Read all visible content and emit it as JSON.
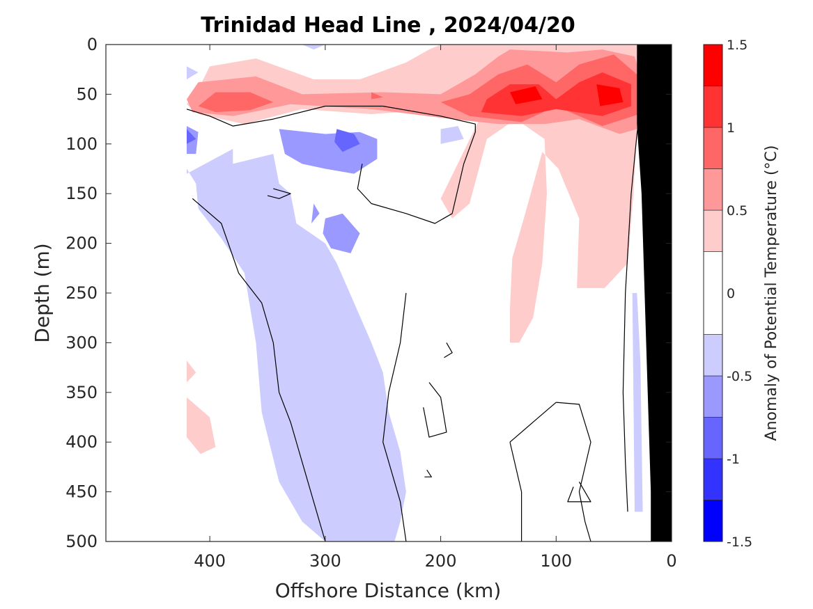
{
  "chart_data": {
    "type": "heatmap",
    "title": "Trinidad Head Line , 2024/04/20",
    "xlabel": "Offshore Distance (km)",
    "ylabel": "Depth (m)",
    "xlim": [
      490,
      0
    ],
    "ylim": [
      0,
      500
    ],
    "x_reversed": true,
    "y_reversed": true,
    "xticks": [
      400,
      300,
      200,
      100,
      0
    ],
    "yticks": [
      0,
      50,
      100,
      150,
      200,
      250,
      300,
      350,
      400,
      450,
      500
    ],
    "grid": false,
    "colorbar": {
      "label": "Anomaly of Potential Temperature (°C)",
      "levels": [
        -1.5,
        -1.25,
        -1.0,
        -0.75,
        -0.5,
        -0.25,
        0.25,
        0.5,
        0.75,
        1.0,
        1.25,
        1.5
      ],
      "ticks": [
        -1.5,
        -1,
        -0.5,
        0,
        0.5,
        1,
        1.5
      ],
      "tick_labels": [
        "-1.5",
        "-1",
        "-0.5",
        "0",
        "0.5",
        "1",
        "1.5"
      ],
      "colors": [
        "#0000ff",
        "#3333ff",
        "#6666ff",
        "#9999ff",
        "#ccccff",
        "#ffffff",
        "#ffcccc",
        "#ff9999",
        "#ff6666",
        "#ff3333",
        "#ff0000"
      ]
    },
    "contour_line_level": 0,
    "regions": [
      {
        "anomaly": 0.375,
        "points": [
          [
            400,
            22
          ],
          [
            360,
            14
          ],
          [
            310,
            35
          ],
          [
            270,
            35
          ],
          [
            230,
            18
          ],
          [
            210,
            5
          ],
          [
            200,
            0
          ],
          [
            20,
            0
          ],
          [
            18,
            40
          ],
          [
            30,
            80
          ],
          [
            33,
            150
          ],
          [
            38,
            220
          ],
          [
            58,
            245
          ],
          [
            82,
            245
          ],
          [
            80,
            175
          ],
          [
            98,
            125
          ],
          [
            112,
            108
          ],
          [
            128,
            175
          ],
          [
            138,
            215
          ],
          [
            140,
            265
          ],
          [
            140,
            300
          ],
          [
            132,
            300
          ],
          [
            120,
            275
          ],
          [
            112,
            220
          ],
          [
            108,
            150
          ],
          [
            110,
            95
          ],
          [
            135,
            75
          ],
          [
            160,
            95
          ],
          [
            175,
            160
          ],
          [
            190,
            175
          ],
          [
            200,
            155
          ],
          [
            160,
            60
          ],
          [
            120,
            42
          ],
          [
            200,
            65
          ],
          [
            260,
            70
          ],
          [
            320,
            65
          ],
          [
            370,
            80
          ],
          [
            410,
            70
          ],
          [
            420,
            60
          ],
          [
            410,
            45
          ]
        ]
      },
      {
        "anomaly": 0.375,
        "points": [
          [
            420,
            318
          ],
          [
            412,
            330
          ],
          [
            420,
            340
          ]
        ]
      },
      {
        "anomaly": 0.375,
        "points": [
          [
            420,
            355
          ],
          [
            400,
            375
          ],
          [
            395,
            405
          ],
          [
            408,
            412
          ],
          [
            420,
            395
          ]
        ]
      },
      {
        "anomaly": 0.625,
        "points": [
          [
            410,
            38
          ],
          [
            360,
            32
          ],
          [
            320,
            50
          ],
          [
            250,
            48
          ],
          [
            200,
            50
          ],
          [
            170,
            30
          ],
          [
            150,
            12
          ],
          [
            140,
            5
          ],
          [
            90,
            8
          ],
          [
            60,
            5
          ],
          [
            32,
            12
          ],
          [
            22,
            50
          ],
          [
            30,
            85
          ],
          [
            45,
            90
          ],
          [
            80,
            75
          ],
          [
            110,
            80
          ],
          [
            150,
            80
          ],
          [
            190,
            75
          ],
          [
            260,
            65
          ],
          [
            330,
            60
          ],
          [
            380,
            72
          ],
          [
            415,
            68
          ],
          [
            420,
            55
          ]
        ]
      },
      {
        "anomaly": 0.875,
        "points": [
          [
            395,
            48
          ],
          [
            365,
            48
          ],
          [
            345,
            58
          ],
          [
            365,
            66
          ],
          [
            395,
            68
          ],
          [
            410,
            62
          ]
        ]
      },
      {
        "anomaly": 0.875,
        "points": [
          [
            175,
            50
          ],
          [
            150,
            30
          ],
          [
            125,
            20
          ],
          [
            100,
            38
          ],
          [
            80,
            20
          ],
          [
            50,
            10
          ],
          [
            25,
            35
          ],
          [
            28,
            70
          ],
          [
            60,
            82
          ],
          [
            100,
            62
          ],
          [
            130,
            78
          ],
          [
            175,
            72
          ],
          [
            200,
            58
          ]
        ]
      },
      {
        "anomaly": 0.875,
        "points": [
          [
            260,
            48
          ],
          [
            250,
            53
          ],
          [
            260,
            55
          ]
        ]
      },
      {
        "anomaly": 1.125,
        "points": [
          [
            160,
            55
          ],
          [
            140,
            40
          ],
          [
            115,
            40
          ],
          [
            100,
            55
          ],
          [
            80,
            38
          ],
          [
            60,
            28
          ],
          [
            35,
            40
          ],
          [
            35,
            62
          ],
          [
            60,
            72
          ],
          [
            100,
            65
          ],
          [
            130,
            72
          ],
          [
            165,
            68
          ]
        ]
      },
      {
        "anomaly": 1.375,
        "points": [
          [
            140,
            48
          ],
          [
            118,
            42
          ],
          [
            112,
            55
          ],
          [
            135,
            60
          ]
        ]
      },
      {
        "anomaly": 1.375,
        "points": [
          [
            65,
            40
          ],
          [
            45,
            44
          ],
          [
            42,
            58
          ],
          [
            62,
            62
          ]
        ]
      },
      {
        "anomaly": -0.375,
        "points": [
          [
            420,
            82
          ],
          [
            420,
            130
          ],
          [
            380,
            105
          ],
          [
            380,
            120
          ],
          [
            345,
            110
          ],
          [
            340,
            140
          ],
          [
            330,
            150
          ],
          [
            325,
            180
          ],
          [
            300,
            200
          ],
          [
            290,
            220
          ],
          [
            275,
            260
          ],
          [
            260,
            300
          ],
          [
            250,
            330
          ],
          [
            245,
            370
          ],
          [
            235,
            410
          ],
          [
            230,
            450
          ],
          [
            235,
            480
          ],
          [
            240,
            500
          ],
          [
            300,
            500
          ],
          [
            320,
            480
          ],
          [
            340,
            440
          ],
          [
            355,
            370
          ],
          [
            360,
            300
          ],
          [
            370,
            230
          ],
          [
            390,
            195
          ],
          [
            410,
            165
          ],
          [
            412,
            140
          ],
          [
            420,
            125
          ]
        ]
      },
      {
        "anomaly": -0.375,
        "points": [
          [
            420,
            22
          ],
          [
            410,
            28
          ],
          [
            420,
            35
          ]
        ]
      },
      {
        "anomaly": -0.375,
        "points": [
          [
            320,
            0
          ],
          [
            310,
            5
          ],
          [
            300,
            0
          ]
        ]
      },
      {
        "anomaly": -0.375,
        "points": [
          [
            200,
            85
          ],
          [
            185,
            82
          ],
          [
            180,
            95
          ],
          [
            200,
            100
          ]
        ]
      },
      {
        "anomaly": -0.375,
        "points": [
          [
            30,
            250
          ],
          [
            27,
            320
          ],
          [
            25,
            470
          ],
          [
            32,
            470
          ],
          [
            34,
            250
          ]
        ]
      },
      {
        "anomaly": -0.625,
        "points": [
          [
            340,
            85
          ],
          [
            300,
            90
          ],
          [
            270,
            88
          ],
          [
            255,
            95
          ],
          [
            255,
            115
          ],
          [
            275,
            130
          ],
          [
            300,
            125
          ],
          [
            320,
            120
          ],
          [
            335,
            110
          ]
        ]
      },
      {
        "anomaly": -0.625,
        "points": [
          [
            420,
            82
          ],
          [
            410,
            88
          ],
          [
            412,
            110
          ],
          [
            420,
            110
          ]
        ]
      },
      {
        "anomaly": -0.625,
        "points": [
          [
            300,
            175
          ],
          [
            285,
            170
          ],
          [
            270,
            190
          ],
          [
            278,
            210
          ],
          [
            295,
            205
          ],
          [
            302,
            190
          ]
        ]
      },
      {
        "anomaly": -0.625,
        "points": [
          [
            310,
            160
          ],
          [
            305,
            170
          ],
          [
            312,
            180
          ]
        ]
      },
      {
        "anomaly": -0.875,
        "points": [
          [
            290,
            85
          ],
          [
            275,
            90
          ],
          [
            270,
            100
          ],
          [
            285,
            108
          ],
          [
            292,
            98
          ]
        ]
      },
      {
        "anomaly": -0.875,
        "points": [
          [
            420,
            85
          ],
          [
            412,
            95
          ],
          [
            420,
            100
          ]
        ]
      }
    ],
    "contour_lines": [
      [
        [
          420,
          65
        ],
        [
          400,
          72
        ],
        [
          380,
          82
        ],
        [
          345,
          75
        ],
        [
          300,
          62
        ],
        [
          250,
          62
        ],
        [
          200,
          72
        ],
        [
          170,
          80
        ],
        [
          170,
          88
        ],
        [
          180,
          120
        ],
        [
          190,
          170
        ],
        [
          205,
          180
        ],
        [
          230,
          170
        ],
        [
          260,
          160
        ],
        [
          272,
          145
        ],
        [
          268,
          120
        ]
      ],
      [
        [
          415,
          155
        ],
        [
          390,
          180
        ],
        [
          375,
          230
        ],
        [
          355,
          260
        ],
        [
          345,
          300
        ],
        [
          340,
          350
        ],
        [
          330,
          380
        ],
        [
          320,
          420
        ],
        [
          310,
          460
        ],
        [
          300,
          500
        ]
      ],
      [
        [
          230,
          250
        ],
        [
          235,
          300
        ],
        [
          245,
          350
        ],
        [
          250,
          400
        ],
        [
          235,
          460
        ],
        [
          230,
          500
        ]
      ],
      [
        [
          210,
          340
        ],
        [
          200,
          355
        ],
        [
          195,
          390
        ],
        [
          210,
          395
        ],
        [
          215,
          365
        ]
      ],
      [
        [
          195,
          300
        ],
        [
          190,
          310
        ],
        [
          197,
          315
        ]
      ],
      [
        [
          212,
          428
        ],
        [
          208,
          435
        ],
        [
          214,
          435
        ]
      ],
      [
        [
          100,
          360
        ],
        [
          80,
          362
        ],
        [
          70,
          400
        ],
        [
          80,
          450
        ],
        [
          75,
          480
        ],
        [
          70,
          500
        ]
      ],
      [
        [
          140,
          400
        ],
        [
          120,
          380
        ],
        [
          100,
          360
        ]
      ],
      [
        [
          140,
          400
        ],
        [
          130,
          450
        ],
        [
          130,
          500
        ]
      ],
      [
        [
          80,
          440
        ],
        [
          70,
          460
        ],
        [
          90,
          460
        ],
        [
          85,
          445
        ]
      ],
      [
        [
          25,
          40
        ],
        [
          30,
          90
        ],
        [
          35,
          150
        ],
        [
          40,
          250
        ],
        [
          42,
          350
        ],
        [
          40,
          420
        ],
        [
          38,
          470
        ]
      ],
      [
        [
          345,
          145
        ],
        [
          330,
          150
        ],
        [
          340,
          155
        ],
        [
          350,
          152
        ]
      ]
    ],
    "land_mask": [
      [
        18,
        500
      ],
      [
        18,
        450
      ],
      [
        22,
        300
      ],
      [
        26,
        150
      ],
      [
        30,
        80
      ],
      [
        30,
        0
      ],
      [
        0,
        0
      ],
      [
        0,
        500
      ]
    ]
  }
}
